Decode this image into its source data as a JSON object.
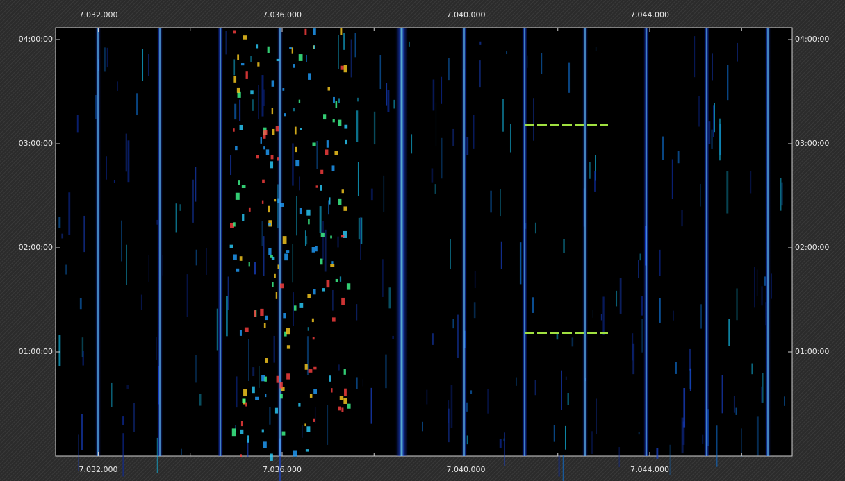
{
  "chart_data": {
    "type": "waterfall",
    "xlim": [
      7031070,
      7047100
    ],
    "xticks": [
      {
        "value": 7032000,
        "label": "7.032.000"
      },
      {
        "value": 7036000,
        "label": "7.036.000"
      },
      {
        "value": 7040000,
        "label": "7.040.000"
      },
      {
        "value": 7044000,
        "label": "7.044.000"
      }
    ],
    "xminorticks": [
      7034000,
      7038000,
      7042000,
      7046000
    ],
    "ylim": [
      0,
      14808
    ],
    "yticks": [
      {
        "value": 3600,
        "label": "01:00:00"
      },
      {
        "value": 7200,
        "label": "02:00:00"
      },
      {
        "value": 10800,
        "label": "03:00:00"
      },
      {
        "value": 14400,
        "label": "04:00:00"
      }
    ]
  }
}
